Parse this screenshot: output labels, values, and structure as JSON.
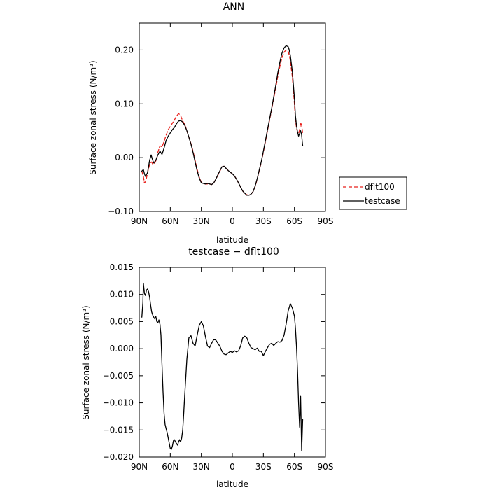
{
  "chart_data": [
    {
      "type": "line",
      "title": "ANN",
      "xlabel": "latitude",
      "ylabel": "Surface zonal stress (N/m²)",
      "xlim": [
        90,
        -90
      ],
      "ylim": [
        -0.1,
        0.25
      ],
      "xticks": [
        90,
        60,
        30,
        0,
        -30,
        -60,
        -90
      ],
      "xtick_labels": [
        "90N",
        "60N",
        "30N",
        "0",
        "30S",
        "60S",
        "90S"
      ],
      "yticks": [
        -0.1,
        0.0,
        0.1,
        0.2
      ],
      "ytick_labels": [
        "−0.10",
        "0.00",
        "0.10",
        "0.20"
      ],
      "grid": false,
      "legend_position": "right, outside plot",
      "series": [
        {
          "name": "dflt100",
          "color": "#e8201c",
          "dashed": true,
          "x": [
            87.5,
            86,
            85,
            84,
            83,
            81,
            79.5,
            78,
            77,
            75,
            73,
            72,
            70,
            68,
            66,
            64,
            62,
            60,
            58,
            56,
            54,
            52,
            50,
            48,
            46,
            44,
            42,
            40,
            38,
            36,
            34,
            32,
            30,
            28,
            26,
            24,
            22,
            20,
            18,
            16,
            14,
            12,
            10,
            8,
            6,
            4,
            2,
            0,
            -2,
            -4,
            -6,
            -8,
            -10,
            -12,
            -14,
            -16,
            -18,
            -20,
            -22,
            -24,
            -26,
            -28,
            -30,
            -32,
            -34,
            -36,
            -38,
            -40,
            -42,
            -44,
            -46,
            -48,
            -50,
            -52,
            -54,
            -55,
            -56,
            -58,
            -60,
            -61,
            -62,
            -63,
            -64,
            -65,
            -66,
            -67,
            -67.5,
            -68
          ],
          "y": [
            -0.025,
            -0.035,
            -0.047,
            -0.045,
            -0.038,
            -0.02,
            -0.01,
            -0.008,
            -0.012,
            -0.01,
            -0.002,
            0.01,
            0.022,
            0.02,
            0.03,
            0.042,
            0.052,
            0.058,
            0.064,
            0.07,
            0.077,
            0.082,
            0.078,
            0.068,
            0.062,
            0.05,
            0.038,
            0.026,
            0.012,
            -0.005,
            -0.022,
            -0.036,
            -0.046,
            -0.048,
            -0.049,
            -0.049,
            -0.049,
            -0.05,
            -0.047,
            -0.04,
            -0.033,
            -0.025,
            -0.017,
            -0.016,
            -0.02,
            -0.024,
            -0.027,
            -0.03,
            -0.034,
            -0.04,
            -0.047,
            -0.055,
            -0.062,
            -0.066,
            -0.069,
            -0.07,
            -0.068,
            -0.063,
            -0.054,
            -0.04,
            -0.024,
            -0.008,
            0.01,
            0.03,
            0.05,
            0.07,
            0.09,
            0.11,
            0.13,
            0.152,
            0.17,
            0.186,
            0.196,
            0.2,
            0.197,
            0.19,
            0.18,
            0.15,
            0.1,
            0.07,
            0.056,
            0.047,
            0.045,
            0.052,
            0.065,
            0.06,
            0.052,
            0.045
          ]
        },
        {
          "name": "testcase",
          "color": "#000000",
          "dashed": false,
          "x": [
            87.5,
            86,
            85,
            84,
            82,
            80,
            78.5,
            77.5,
            76,
            74,
            72,
            70,
            68,
            66,
            64,
            62,
            60,
            58,
            56,
            54,
            52,
            50,
            48,
            46,
            44,
            42,
            40,
            38,
            36,
            34,
            32,
            30,
            28,
            26,
            24,
            22,
            20,
            18,
            16,
            14,
            12,
            10,
            8,
            6,
            4,
            2,
            0,
            -2,
            -4,
            -6,
            -8,
            -10,
            -12,
            -14,
            -16,
            -18,
            -20,
            -22,
            -24,
            -26,
            -28,
            -30,
            -32,
            -34,
            -36,
            -38,
            -40,
            -42,
            -44,
            -46,
            -48,
            -50,
            -52,
            -54,
            -55,
            -56,
            -58,
            -60,
            -61,
            -62,
            -63,
            -64,
            -65,
            -66,
            -67,
            -67.5,
            -68
          ],
          "y": [
            -0.025,
            -0.022,
            -0.03,
            -0.035,
            -0.028,
            -0.005,
            0.005,
            -0.002,
            -0.01,
            -0.005,
            0.005,
            0.012,
            0.006,
            0.018,
            0.032,
            0.04,
            0.046,
            0.052,
            0.056,
            0.063,
            0.068,
            0.069,
            0.066,
            0.06,
            0.05,
            0.038,
            0.025,
            0.01,
            -0.008,
            -0.025,
            -0.038,
            -0.047,
            -0.048,
            -0.049,
            -0.048,
            -0.049,
            -0.05,
            -0.047,
            -0.04,
            -0.032,
            -0.024,
            -0.017,
            -0.016,
            -0.02,
            -0.024,
            -0.027,
            -0.03,
            -0.034,
            -0.04,
            -0.047,
            -0.055,
            -0.062,
            -0.066,
            -0.07,
            -0.07,
            -0.068,
            -0.063,
            -0.053,
            -0.039,
            -0.023,
            -0.007,
            0.012,
            0.032,
            0.052,
            0.072,
            0.092,
            0.113,
            0.135,
            0.158,
            0.178,
            0.194,
            0.204,
            0.208,
            0.206,
            0.2,
            0.19,
            0.16,
            0.11,
            0.078,
            0.06,
            0.048,
            0.04,
            0.045,
            0.05,
            0.042,
            0.03,
            0.022
          ]
        }
      ]
    },
    {
      "type": "line",
      "title": "testcase − dflt100",
      "xlabel": "latitude",
      "ylabel": "Surface zonal stress (N/m²)",
      "xlim": [
        90,
        -90
      ],
      "ylim": [
        -0.02,
        0.015
      ],
      "xticks": [
        90,
        60,
        30,
        0,
        -30,
        -60,
        -90
      ],
      "xtick_labels": [
        "90N",
        "60N",
        "30N",
        "0",
        "30S",
        "60S",
        "90S"
      ],
      "yticks": [
        -0.02,
        -0.015,
        -0.01,
        -0.005,
        0.0,
        0.005,
        0.01,
        0.015
      ],
      "ytick_labels": [
        "−0.020",
        "−0.015",
        "−0.010",
        "−0.005",
        "0.000",
        "0.005",
        "0.010",
        "0.015"
      ],
      "grid": false,
      "series": [
        {
          "color": "#000000",
          "dashed": false,
          "x": [
            87.5,
            86.5,
            86,
            85,
            84,
            83,
            82,
            81,
            80,
            79,
            78,
            77,
            76,
            75,
            74,
            73,
            72,
            71,
            70,
            69,
            68,
            67,
            66,
            65,
            64,
            63,
            62,
            61,
            60,
            59,
            58,
            57,
            56,
            55,
            54,
            53,
            52,
            51,
            50,
            49,
            48,
            47,
            46,
            44,
            42,
            40,
            38,
            36,
            34,
            32,
            30,
            28,
            26,
            24,
            22,
            20,
            18,
            16,
            14,
            12,
            10,
            8,
            6,
            4,
            2,
            0,
            -2,
            -4,
            -6,
            -8,
            -10,
            -12,
            -14,
            -16,
            -18,
            -20,
            -22,
            -24,
            -26,
            -28,
            -30,
            -32,
            -34,
            -36,
            -38,
            -40,
            -42,
            -44,
            -46,
            -48,
            -50,
            -52,
            -54,
            -56,
            -58,
            -60,
            -61,
            -62,
            -63,
            -64,
            -65,
            -66,
            -67,
            -68
          ],
          "y": [
            0.0058,
            0.0085,
            0.0121,
            0.0102,
            0.0098,
            0.0108,
            0.011,
            0.0105,
            0.0095,
            0.008,
            0.0068,
            0.0062,
            0.0058,
            0.0055,
            0.006,
            0.005,
            0.0048,
            0.0053,
            0.0045,
            0.0025,
            -0.003,
            -0.008,
            -0.012,
            -0.014,
            -0.0148,
            -0.0155,
            -0.0165,
            -0.0175,
            -0.0184,
            -0.0186,
            -0.018,
            -0.017,
            -0.0168,
            -0.0172,
            -0.0175,
            -0.0178,
            -0.0172,
            -0.0168,
            -0.0172,
            -0.0165,
            -0.015,
            -0.012,
            -0.0085,
            -0.002,
            0.002,
            0.0024,
            0.001,
            0.0005,
            0.0025,
            0.0043,
            0.005,
            0.0042,
            0.0022,
            0.0005,
            0.0002,
            0.001,
            0.0017,
            0.0016,
            0.001,
            0.0004,
            -0.0005,
            -0.001,
            -0.0011,
            -0.0008,
            -0.0005,
            -0.0007,
            -0.0004,
            -0.0006,
            -0.0004,
            0.0005,
            0.002,
            0.0023,
            0.002,
            0.001,
            0.0002,
            0.0,
            -0.0002,
            0.0001,
            -0.0005,
            -0.0005,
            -0.0013,
            -0.0005,
            0.0002,
            0.0008,
            0.001,
            0.0006,
            0.001,
            0.0013,
            0.0012,
            0.0015,
            0.0025,
            0.0045,
            0.007,
            0.0083,
            0.0075,
            0.006,
            0.0038,
            0.0005,
            -0.004,
            -0.01,
            -0.0145,
            -0.0088,
            -0.0188,
            -0.013
          ]
        }
      ]
    }
  ]
}
